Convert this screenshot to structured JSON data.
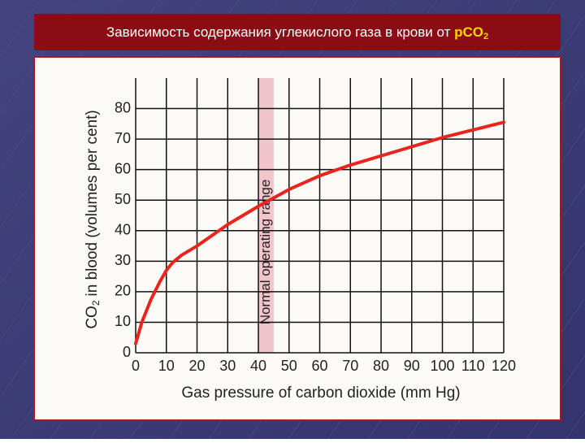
{
  "chart_data": {
    "type": "line",
    "title": "Зависимость содержания углекислого газа в крови от",
    "title_emphasis": "pCO",
    "title_subscript": "2",
    "ylabel": "CO",
    "ylabel_subscript": "2",
    "ylabel_rest": "in blood (volumes per cent)",
    "xlabel": "Gas pressure of carbon dioxide (mm Hg)",
    "band": [
      40,
      45
    ],
    "band_label": "Normal operating range",
    "band_color": "#f2c4cc",
    "x": [
      0,
      2,
      5,
      8,
      10,
      12,
      15,
      20,
      30,
      40,
      50,
      60,
      70,
      80,
      90,
      100,
      110,
      120
    ],
    "series": [
      {
        "color": "#e8241c",
        "values": [
          3,
          10,
          17.5,
          23.5,
          27,
          29.5,
          32,
          35,
          42,
          48,
          53.5,
          58,
          61.5,
          64.5,
          67.5,
          70.5,
          73,
          75.5
        ]
      }
    ],
    "xlim": [
      0,
      120
    ],
    "ylim": [
      0,
      90
    ],
    "xticks": [
      0,
      10,
      20,
      30,
      40,
      50,
      60,
      70,
      80,
      90,
      100,
      110,
      120
    ],
    "yticks": [
      0,
      10,
      20,
      30,
      40,
      50,
      60,
      70,
      80
    ],
    "grid": true
  }
}
